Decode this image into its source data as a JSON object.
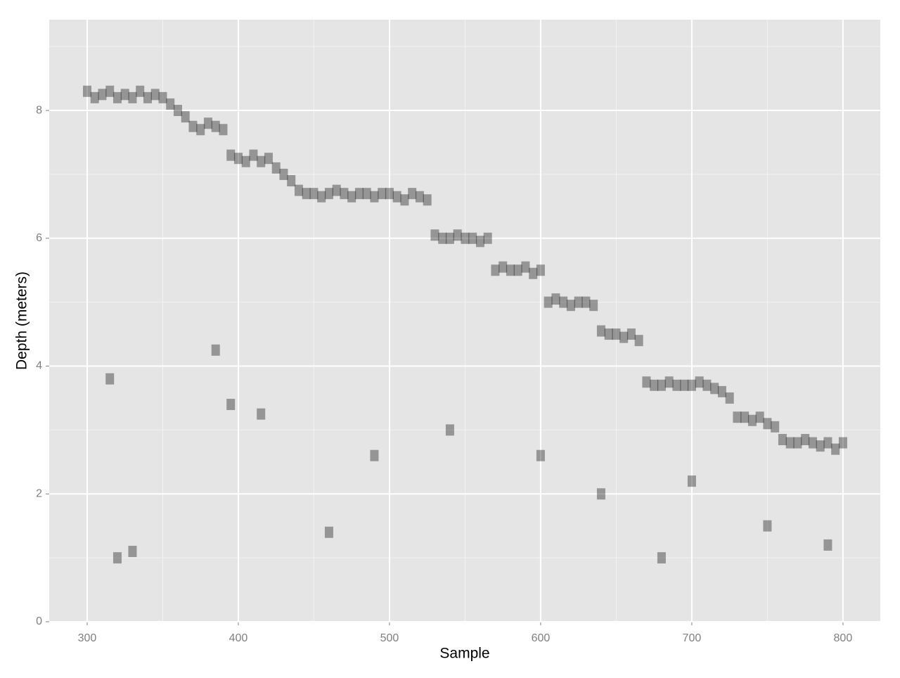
{
  "chart_data": {
    "type": "scatter",
    "x_label": "Sample",
    "y_label": "Depth (meters)",
    "x": [
      300,
      305,
      310,
      315,
      320,
      325,
      330,
      335,
      340,
      345,
      350,
      355,
      360,
      365,
      370,
      375,
      380,
      385,
      390,
      395,
      400,
      405,
      410,
      415,
      420,
      425,
      430,
      435,
      440,
      445,
      450,
      455,
      460,
      465,
      470,
      475,
      480,
      485,
      490,
      495,
      500,
      505,
      510,
      515,
      520,
      525,
      530,
      535,
      540,
      545,
      550,
      555,
      560,
      565,
      570,
      575,
      580,
      585,
      590,
      595,
      600,
      605,
      610,
      615,
      620,
      625,
      630,
      635,
      640,
      645,
      650,
      655,
      660,
      665,
      670,
      675,
      680,
      685,
      690,
      695,
      700,
      705,
      710,
      715,
      720,
      725,
      730,
      735,
      740,
      745,
      750,
      755,
      760,
      765,
      770,
      775,
      780,
      785,
      790,
      795,
      800,
      315,
      320,
      385,
      395,
      415,
      490,
      540,
      600,
      640,
      680,
      700,
      750,
      790,
      330,
      460
    ],
    "values": [
      8.3,
      8.2,
      8.25,
      8.3,
      8.2,
      8.25,
      8.2,
      8.3,
      8.2,
      8.25,
      8.2,
      8.1,
      8.0,
      7.9,
      7.75,
      7.7,
      7.8,
      7.75,
      7.7,
      7.3,
      7.25,
      7.2,
      7.3,
      7.2,
      7.25,
      7.1,
      7.0,
      6.9,
      6.75,
      6.7,
      6.7,
      6.65,
      6.7,
      6.75,
      6.7,
      6.65,
      6.7,
      6.7,
      6.65,
      6.7,
      6.7,
      6.65,
      6.6,
      6.7,
      6.65,
      6.6,
      6.05,
      6.0,
      6.0,
      6.05,
      6.0,
      6.0,
      5.95,
      6.0,
      5.5,
      5.55,
      5.5,
      5.5,
      5.55,
      5.45,
      5.5,
      5.0,
      5.05,
      5.0,
      4.95,
      5.0,
      5.0,
      4.95,
      4.55,
      4.5,
      4.5,
      4.45,
      4.5,
      4.4,
      3.75,
      3.7,
      3.7,
      3.75,
      3.7,
      3.7,
      3.7,
      3.75,
      3.7,
      3.65,
      3.6,
      3.5,
      3.2,
      3.2,
      3.15,
      3.2,
      3.1,
      3.05,
      2.85,
      2.8,
      2.8,
      2.85,
      2.8,
      2.75,
      2.8,
      2.7,
      2.8,
      3.8,
      1.0,
      4.25,
      3.4,
      3.25,
      2.6,
      3.0,
      2.6,
      2.0,
      1.0,
      2.2,
      1.5,
      1.2,
      1.1,
      1.4
    ],
    "color": "#000000",
    "xlim": [
      274.9,
      824.7
    ],
    "ylim": [
      0,
      9.42
    ],
    "xticks": [
      300,
      400,
      500,
      600,
      700,
      800
    ],
    "yticks": [
      0,
      2,
      4,
      6,
      8
    ],
    "x_minor": [
      350,
      450,
      550,
      650,
      750
    ],
    "y_minor": [
      1,
      3,
      5,
      7,
      9
    ],
    "grid": true
  }
}
